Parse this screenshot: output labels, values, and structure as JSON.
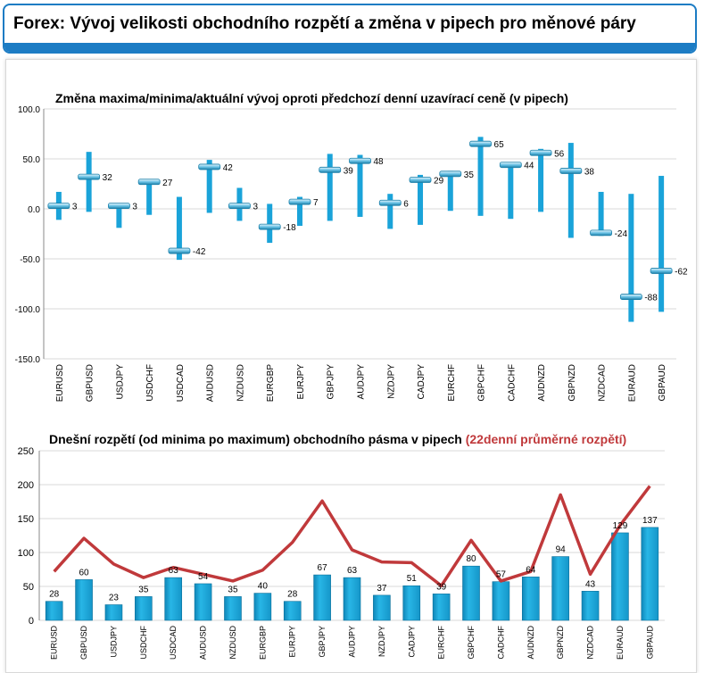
{
  "header": {
    "title": "Forex: Vývoj velikosti obchodního rozpětí a změna v pipech pro měnové páry"
  },
  "colors": {
    "accent": "#1c7cc4",
    "bar": "#1aa3d9",
    "line": "#c0393b",
    "highlight": "#c0393b"
  },
  "chart_data": [
    {
      "type": "bar",
      "title": "Změna maxima/minima/aktuální vývoj oproti předchozí denní uzavírací ceně (v pipech)",
      "categories": [
        "EURUSD",
        "GBPUSD",
        "USDJPY",
        "USDCHF",
        "USDCAD",
        "AUDUSD",
        "NZDUSD",
        "EURGBP",
        "EURJPY",
        "GBPJPY",
        "AUDJPY",
        "NZDJPY",
        "CADJPY",
        "EURCHF",
        "GBPCHF",
        "CADCHF",
        "AUDNZD",
        "GBPNZD",
        "NZDCAD",
        "EURAUD",
        "GBPAUD"
      ],
      "series": [
        {
          "name": "",
          "values": [
            17,
            57,
            5,
            29,
            12,
            49,
            21,
            5,
            12,
            55,
            54,
            15,
            34,
            38,
            72,
            46,
            60,
            66,
            17,
            15,
            33
          ]
        },
        {
          "name": "",
          "values": [
            -11,
            -3,
            -19,
            -6,
            -51,
            -4,
            -12,
            -34,
            -17,
            -12,
            -8,
            -20,
            -16,
            -2,
            -7,
            -10,
            -3,
            -29,
            -27,
            -113,
            -103
          ]
        },
        {
          "name": "",
          "values": [
            3,
            32,
            3,
            27,
            -42,
            42,
            3,
            -18,
            7,
            39,
            48,
            6,
            29,
            35,
            65,
            44,
            56,
            38,
            -24,
            -88,
            -62
          ]
        }
      ],
      "data_labels": [
        "3",
        "32",
        "3",
        "27",
        "-42",
        "42",
        "3",
        "-18",
        "7",
        "39",
        "48",
        "6",
        "29",
        "35",
        "65",
        "44",
        "56",
        "38",
        "-24",
        "-88",
        "-62"
      ],
      "ylim": [
        -150,
        100
      ],
      "y_ticks": [
        "100.0",
        "50.0",
        "0.0",
        "-50.0",
        "-100.0",
        "-150.0"
      ],
      "grid": true
    },
    {
      "type": "bar",
      "title_parts": [
        "Dnešní rozpětí (od minima po maximum) obchodního pásma v pipech ",
        "(22denní průměrné rozpětí)"
      ],
      "categories": [
        "EURUSD",
        "GBPUSD",
        "USDJPY",
        "USDCHF",
        "USDCAD",
        "AUDUSD",
        "NZDUSD",
        "EURGBP",
        "EURJPY",
        "GBPJPY",
        "AUDJPY",
        "NZDJPY",
        "CADJPY",
        "EURCHF",
        "GBPCHF",
        "CADCHF",
        "AUDNZD",
        "GBPNZD",
        "NZDCAD",
        "EURAUD",
        "GBPAUD"
      ],
      "series": [
        {
          "name": "",
          "type": "bar",
          "values": [
            28,
            60,
            23,
            35,
            63,
            54,
            35,
            40,
            28,
            67,
            63,
            37,
            51,
            39,
            80,
            57,
            64,
            94,
            43,
            129,
            137
          ]
        },
        {
          "name": "",
          "type": "line",
          "values": [
            72,
            121,
            83,
            63,
            78,
            68,
            58,
            74,
            115,
            176,
            104,
            86,
            85,
            51,
            118,
            58,
            72,
            185,
            68,
            140,
            198
          ]
        }
      ],
      "data_labels": [
        "28",
        "60",
        "23",
        "35",
        "63",
        "54",
        "35",
        "40",
        "28",
        "67",
        "63",
        "37",
        "51",
        "39",
        "80",
        "57",
        "64",
        "94",
        "43",
        "129",
        "137"
      ],
      "ylim": [
        0,
        250
      ],
      "y_ticks": [
        "250",
        "200",
        "150",
        "100",
        "50",
        "0"
      ],
      "grid": true
    }
  ]
}
